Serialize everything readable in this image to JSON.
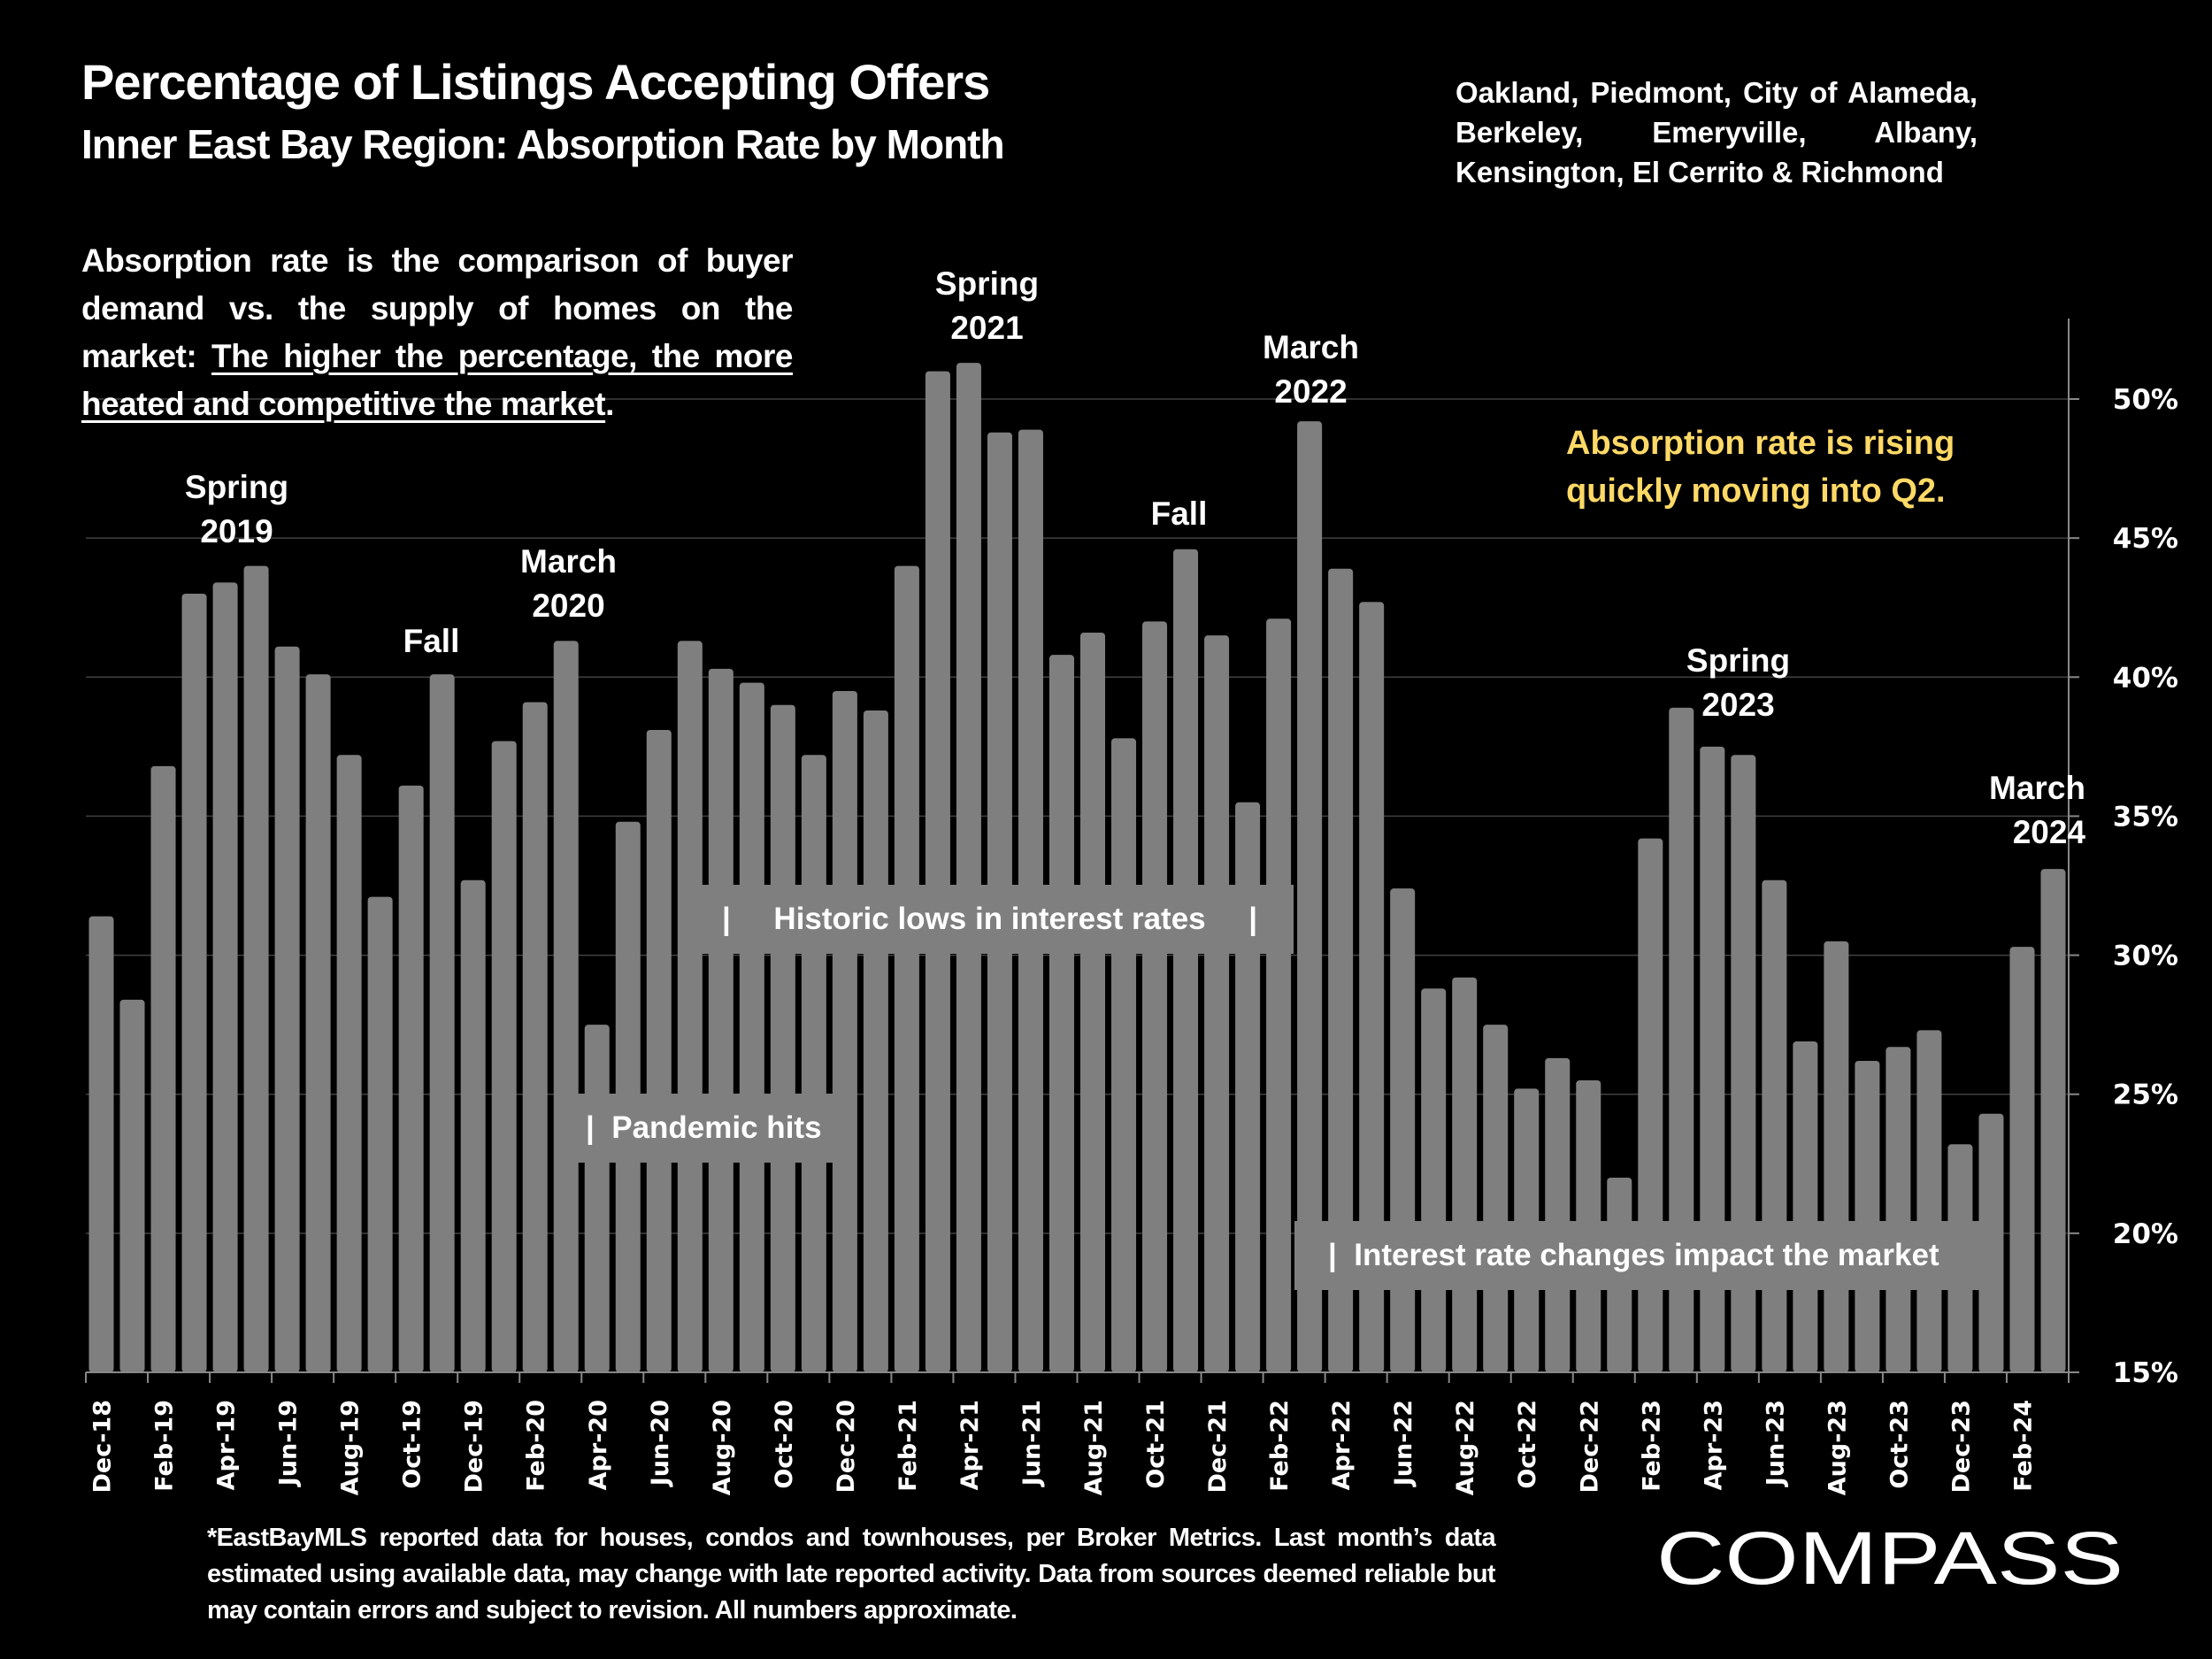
{
  "header": {
    "title": "Percentage of Listings Accepting Offers",
    "subtitle": "Inner East Bay Region:  Absorption Rate by Month",
    "region": "Oakland, Piedmont, City of Alameda, Berkeley, Emeryville, Albany, Kensington, El Cerrito & Richmond"
  },
  "description": {
    "plain": "Absorption rate is the comparison of buyer demand vs. the supply of homes on the market: ",
    "underlined": "The higher the percentage, the more heated and competitive the market",
    "end": "."
  },
  "highlight": {
    "text_line1": "Absorption rate is rising",
    "text_line2": "quickly moving into Q2.",
    "color": "#FFD966"
  },
  "annotations": {
    "spring2019_l1": "Spring",
    "spring2019_l2": "2019",
    "fall2019": "Fall",
    "march2020_l1": "March",
    "march2020_l2": "2020",
    "spring2021_l1": "Spring",
    "spring2021_l2": "2021",
    "march2022_l1": "March",
    "march2022_l2": "2022",
    "fall2021": "Fall",
    "spring2023_l1": "Spring",
    "spring2023_l2": "2023",
    "march2024_l1": "March",
    "march2024_l2": "2024",
    "pandemic": "|  Pandemic hits",
    "historic_lows": "|     Historic lows in interest rates     |",
    "rate_changes": "|  Interest rate changes impact the market"
  },
  "footnote": "*EastBayMLS reported data for houses, condos and townhouses, per Broker Metrics. Last month’s data estimated using available data, may change with late reported activity. Data from sources deemed reliable but may contain errors and subject to revision. All numbers approximate.",
  "logo": {
    "text": "COMPASS"
  },
  "colors": {
    "bar": "#7F7F7F",
    "background": "#000000",
    "gridline": "#404040",
    "text": "#FFFFFF"
  },
  "chart_data": {
    "type": "bar",
    "title": "Percentage of Listings Accepting Offers",
    "subtitle": "Inner East Bay Region: Absorption Rate by Month",
    "xlabel": "",
    "ylabel": "",
    "ylim": [
      15,
      52
    ],
    "y_ticks": [
      15,
      20,
      25,
      30,
      35,
      40,
      45,
      50
    ],
    "y_tick_labels": [
      "15%",
      "20%",
      "25%",
      "30%",
      "35%",
      "40%",
      "45%",
      "50%"
    ],
    "y_axis_position": "right",
    "grid": true,
    "categories": [
      "Dec-18",
      "Jan-19",
      "Feb-19",
      "Mar-19",
      "Apr-19",
      "May-19",
      "Jun-19",
      "Jul-19",
      "Aug-19",
      "Sep-19",
      "Oct-19",
      "Nov-19",
      "Dec-19",
      "Jan-20",
      "Feb-20",
      "Mar-20",
      "Apr-20",
      "May-20",
      "Jun-20",
      "Jul-20",
      "Aug-20",
      "Sep-20",
      "Oct-20",
      "Nov-20",
      "Dec-20",
      "Jan-21",
      "Feb-21",
      "Mar-21",
      "Apr-21",
      "May-21",
      "Jun-21",
      "Jul-21",
      "Aug-21",
      "Sep-21",
      "Oct-21",
      "Nov-21",
      "Dec-21",
      "Jan-22",
      "Feb-22",
      "Mar-22",
      "Apr-22",
      "May-22",
      "Jun-22",
      "Jul-22",
      "Aug-22",
      "Sep-22",
      "Oct-22",
      "Nov-22",
      "Dec-22",
      "Jan-23",
      "Feb-23",
      "Mar-23",
      "Apr-23",
      "May-23",
      "Jun-23",
      "Jul-23",
      "Aug-23",
      "Sep-23",
      "Oct-23",
      "Nov-23",
      "Dec-23",
      "Jan-24",
      "Feb-24",
      "Mar-24"
    ],
    "x_tick_labels": [
      "Dec-18",
      "Feb-19",
      "Apr-19",
      "Jun-19",
      "Aug-19",
      "Oct-19",
      "Dec-19",
      "Feb-20",
      "Apr-20",
      "Jun-20",
      "Aug-20",
      "Oct-20",
      "Dec-20",
      "Feb-21",
      "Apr-21",
      "Jun-21",
      "Aug-21",
      "Oct-21",
      "Dec-21",
      "Feb-22",
      "Apr-22",
      "Jun-22",
      "Aug-22",
      "Oct-22",
      "Dec-22",
      "Feb-23",
      "Apr-23",
      "Jun-23",
      "Aug-23",
      "Oct-23",
      "Dec-23",
      "Feb-24"
    ],
    "values": [
      31.4,
      28.4,
      36.8,
      43.0,
      43.4,
      44.0,
      41.1,
      40.1,
      37.2,
      32.1,
      36.1,
      40.1,
      32.7,
      37.7,
      39.1,
      41.3,
      27.5,
      34.8,
      38.1,
      41.3,
      40.3,
      39.8,
      39.0,
      37.2,
      39.5,
      38.8,
      44.0,
      51.0,
      51.3,
      48.8,
      48.9,
      40.8,
      41.6,
      37.8,
      42.0,
      44.6,
      41.5,
      35.5,
      42.1,
      49.2,
      43.9,
      42.7,
      32.4,
      28.8,
      29.2,
      27.5,
      25.2,
      26.3,
      25.5,
      22.0,
      34.2,
      38.9,
      37.5,
      37.2,
      32.7,
      26.9,
      30.5,
      26.2,
      26.7,
      27.3,
      23.2,
      24.3,
      30.3,
      33.1
    ],
    "annotations": [
      "Spring 2019",
      "Fall",
      "March 2020",
      "Spring 2021",
      "Fall",
      "March 2022",
      "Spring 2023",
      "March 2024",
      "| Pandemic hits",
      "| Historic lows in interest rates |",
      "| Interest rate changes impact the market",
      "Absorption rate is rising quickly moving into Q2."
    ]
  }
}
